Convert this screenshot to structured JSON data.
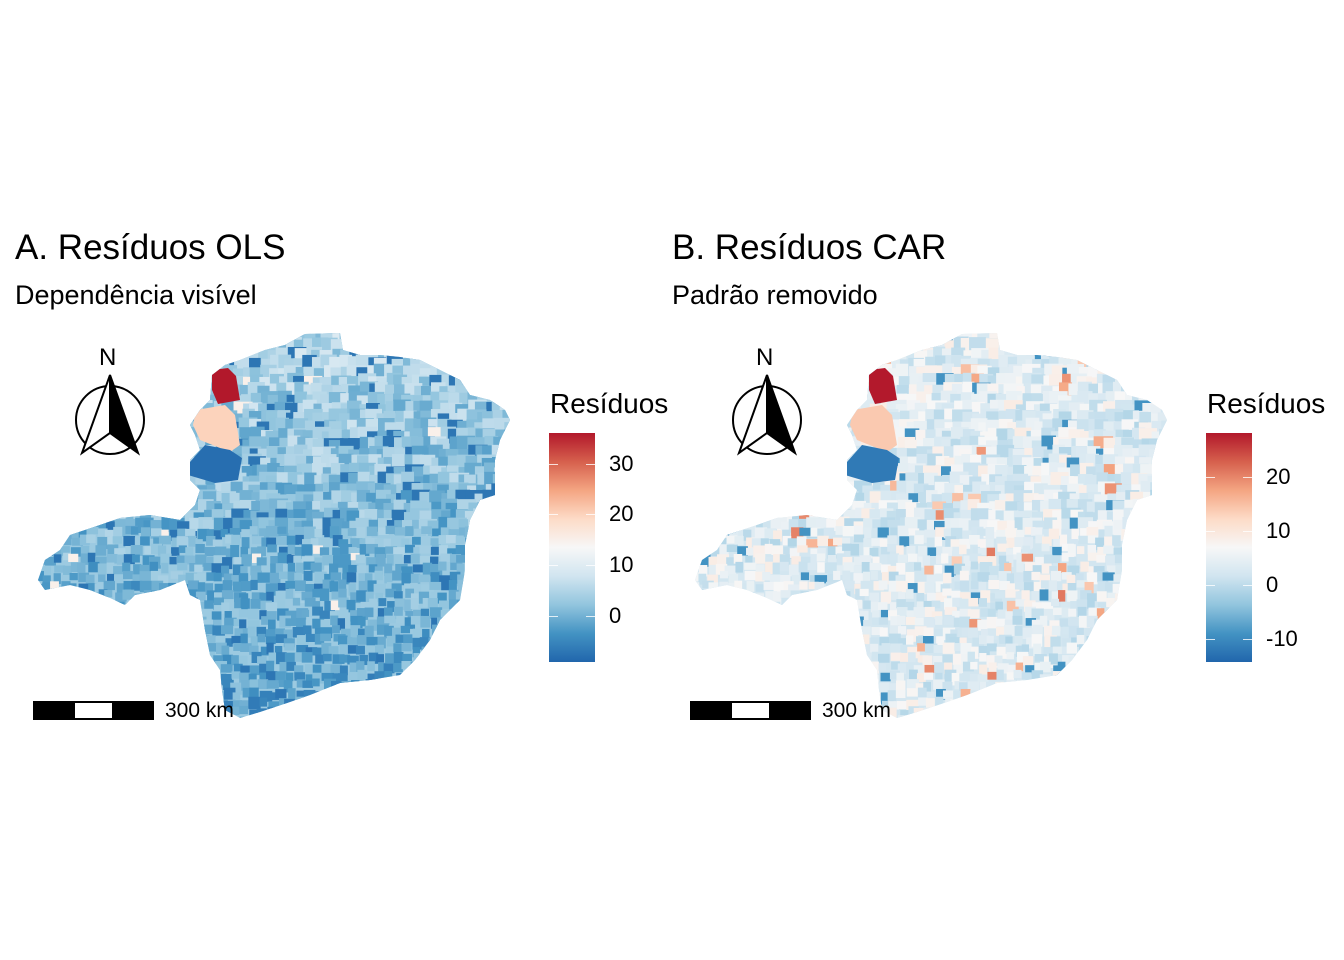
{
  "panels": [
    {
      "title": "A. Resíduos OLS",
      "subtitle": "Dependência visível",
      "north_label": "N",
      "scale_label": "300 km",
      "legend": {
        "title": "Resíduos",
        "ticks": [
          "30",
          "20",
          "10",
          "0"
        ],
        "tick_values": [
          30,
          20,
          10,
          0
        ],
        "range": [
          -9,
          36
        ]
      }
    },
    {
      "title": "B. Resíduos CAR",
      "subtitle": "Padrão removido",
      "north_label": "N",
      "scale_label": "300 km",
      "legend": {
        "title": "Resíduos",
        "ticks": [
          "20",
          "10",
          "0",
          "-10"
        ],
        "tick_values": [
          20,
          10,
          0,
          -10
        ],
        "range": [
          -14.3,
          28.1
        ]
      }
    }
  ],
  "colors": {
    "low": "#2166AC",
    "mid": "#F7F7F7",
    "high": "#B2182B"
  }
}
